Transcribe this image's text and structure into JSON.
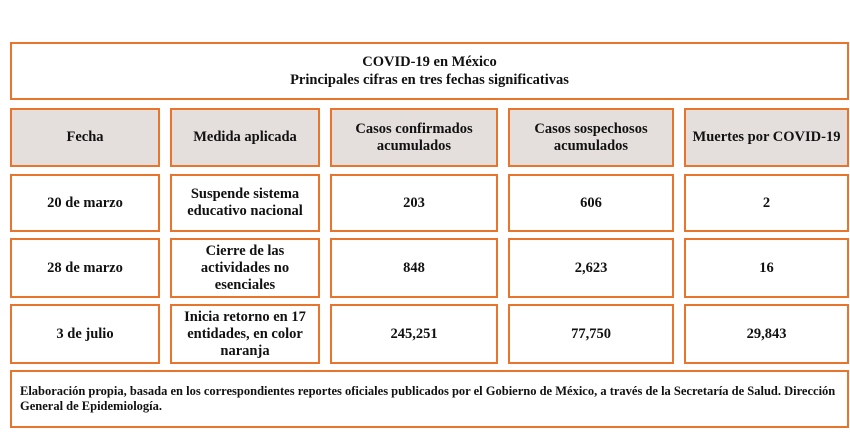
{
  "title": {
    "line1": "COVID-19 en México",
    "line2": "Principales cifras en tres fechas significativas"
  },
  "headers": {
    "fecha": "Fecha",
    "medida": "Medida aplicada",
    "confirmados": "Casos confirmados acumulados",
    "sospechosos": "Casos sospechosos acumulados",
    "muertes": "Muertes por COVID-19"
  },
  "rows": [
    {
      "fecha": "20 de marzo",
      "medida": "Suspende sistema educativo nacional",
      "confirmados": "203",
      "sospechosos": "606",
      "muertes": "2"
    },
    {
      "fecha": "28 de marzo",
      "medida": "Cierre de las actividades no esenciales",
      "confirmados": "848",
      "sospechosos": "2,623",
      "muertes": "16"
    },
    {
      "fecha": "3 de julio",
      "medida": "Inicia retorno en 17 entidades, en color naranja",
      "confirmados": "245,251",
      "sospechosos": "77,750",
      "muertes": "29,843"
    }
  ],
  "footer": "Elaboración propia, basada en los correspondientes reportes oficiales publicados por el Gobierno de México, a través de la Secretaría de Salud. Dirección General de Epidemiología.",
  "colors": {
    "border": "#e9742b",
    "header_bg": "#e4dfdd"
  }
}
